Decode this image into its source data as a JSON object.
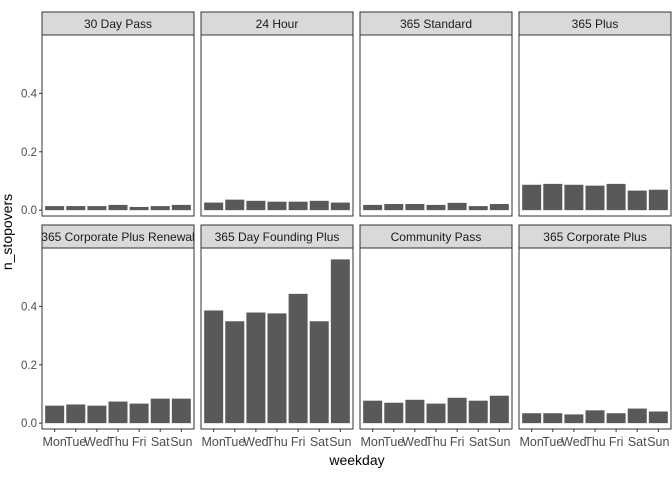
{
  "chart_data": {
    "type": "bar",
    "xlabel": "weekday",
    "ylabel": "n_stopovers",
    "categories": [
      "Mon",
      "Tue",
      "Wed",
      "Thu",
      "Fri",
      "Sat",
      "Sun"
    ],
    "ylim": [
      -0.02,
      0.6
    ],
    "yticks": [
      0.0,
      0.2,
      0.4
    ],
    "ytick_labels": [
      "0.0",
      "0.2",
      "0.4"
    ],
    "bar_color": "#595959",
    "strip_color": "#d9d9d9",
    "facet_rows": 2,
    "facet_cols": 4,
    "facets": [
      {
        "title": "30 Day Pass",
        "values": [
          0.014,
          0.014,
          0.014,
          0.018,
          0.011,
          0.014,
          0.018
        ]
      },
      {
        "title": "24 Hour",
        "values": [
          0.026,
          0.036,
          0.032,
          0.029,
          0.029,
          0.032,
          0.026
        ]
      },
      {
        "title": "365 Standard",
        "values": [
          0.018,
          0.021,
          0.021,
          0.018,
          0.025,
          0.014,
          0.021
        ]
      },
      {
        "title": "365 Plus",
        "values": [
          0.087,
          0.09,
          0.087,
          0.084,
          0.09,
          0.067,
          0.07
        ]
      },
      {
        "title": "365 Corporate Plus Renewal",
        "values": [
          0.06,
          0.064,
          0.06,
          0.074,
          0.067,
          0.084,
          0.084
        ]
      },
      {
        "title": "365 Day Founding Plus",
        "values": [
          0.386,
          0.349,
          0.379,
          0.376,
          0.443,
          0.349,
          0.561
        ]
      },
      {
        "title": "Community Pass",
        "values": [
          0.077,
          0.07,
          0.08,
          0.067,
          0.087,
          0.077,
          0.094
        ]
      },
      {
        "title": "365 Corporate Plus",
        "values": [
          0.034,
          0.034,
          0.03,
          0.044,
          0.034,
          0.05,
          0.04
        ]
      }
    ]
  }
}
